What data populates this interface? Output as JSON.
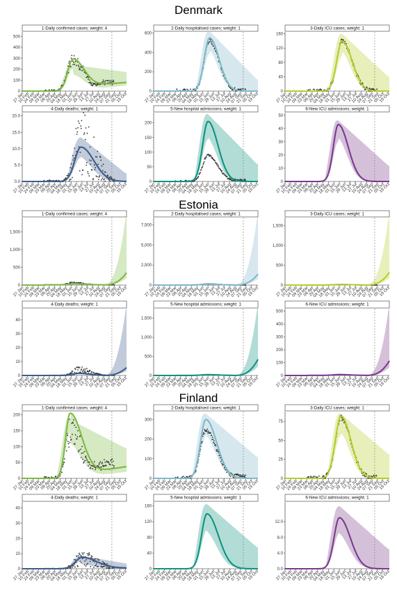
{
  "figure": {
    "countries": [
      "Denmark",
      "Estonia",
      "Finland"
    ],
    "x_ticks": [
      "27 Jan",
      "10 Feb",
      "24 Feb",
      "09 Mar",
      "23 Mar",
      "06 Apr",
      "20 Apr",
      "04 May",
      "18 May",
      "01 Jun",
      "15 Jun",
      "29 Jun",
      "13 Jul",
      "27 Jul",
      "10 Aug",
      "24 Aug",
      "07 Sep",
      "21 Sep",
      "05 Oct",
      "19 Oct"
    ],
    "cutoff_date": "14 Sep",
    "colors": {
      "confirmed": "#7cba41",
      "hospitalised": "#7fb9c9",
      "icu": "#b7cd2b",
      "deaths": "#3f5c8c",
      "new_hosp": "#0f9380",
      "new_icu": "#7b3a8d",
      "points": "#333333",
      "cutoff_line": "#888888"
    }
  },
  "chart_data": [
    {
      "country": "Denmark",
      "panel": "1-Daily confirmed cases; weight: 4",
      "type": "line",
      "color_key": "confirmed",
      "ylim": [
        0,
        540
      ],
      "yticks": [
        "0",
        "100",
        "200",
        "300",
        "400",
        "500"
      ],
      "peak_x": 9.3,
      "peak_y": 255,
      "rise": 1.4,
      "decay": 2.2,
      "floor": 40,
      "late_slope": 4,
      "ci_upper_peak": 240,
      "ci_upper_late": 175,
      "ci_lower_peak": 150,
      "ci_lower_late": 50,
      "obs_scale": 1.2,
      "obs_peak_y": 300,
      "obs_late": 80
    },
    {
      "country": "Denmark",
      "panel": "2-Daily hospitalised cases; weight: 1",
      "type": "line",
      "color_key": "hospitalised",
      "ylim": [
        0,
        610
      ],
      "yticks": [
        "0",
        "200",
        "400",
        "600"
      ],
      "peak_x": 10.3,
      "peak_y": 550,
      "rise": 1.4,
      "decay": 1.9,
      "floor": 0,
      "late_slope": 0,
      "ci_upper_peak": 620,
      "ci_upper_late": 120,
      "ci_lower_peak": 420,
      "ci_lower_late": 0,
      "obs_scale": 1.0,
      "obs_peak_y": 520,
      "obs_late": 5
    },
    {
      "country": "Denmark",
      "panel": "3-Daily ICU cases; weight: 1",
      "type": "line",
      "color_key": "icu",
      "ylim": [
        0,
        165
      ],
      "yticks": [
        "0",
        "40",
        "80",
        "120",
        "160"
      ],
      "peak_x": 10.5,
      "peak_y": 140,
      "rise": 1.4,
      "decay": 2.0,
      "floor": 0,
      "late_slope": 0,
      "ci_upper_peak": 160,
      "ci_upper_late": 40,
      "ci_lower_peak": 110,
      "ci_lower_late": 0,
      "obs_scale": 1.0,
      "obs_peak_y": 140,
      "obs_late": 2
    },
    {
      "country": "Denmark",
      "panel": "4-Daily deaths; weight: 1",
      "type": "line",
      "color_key": "deaths",
      "ylim": [
        0,
        21
      ],
      "yticks": [
        "0.0",
        "5.0",
        "10.0",
        "15.0",
        "20.0"
      ],
      "peak_x": 10.8,
      "peak_y": 10.5,
      "rise": 1.6,
      "decay": 2.6,
      "floor": 0,
      "late_slope": 0,
      "ci_upper_peak": 13.5,
      "ci_upper_late": 2.5,
      "ci_lower_peak": 7.5,
      "ci_lower_late": 0,
      "obs_scale": 1.9,
      "obs_peak_y": 12,
      "obs_late": 0.2
    },
    {
      "country": "Denmark",
      "panel": "5-New hospital admissions; weight: 1",
      "type": "line",
      "color_key": "new_hosp",
      "ylim": [
        0,
        235
      ],
      "yticks": [
        "0",
        "50",
        "100",
        "150",
        "200"
      ],
      "peak_x": 10.0,
      "peak_y": 205,
      "rise": 1.4,
      "decay": 2.0,
      "floor": 0,
      "late_slope": 0,
      "ci_upper_peak": 230,
      "ci_upper_late": 60,
      "ci_lower_peak": 150,
      "ci_lower_late": 0,
      "obs_scale": 1.0,
      "obs_peak_y": 90,
      "obs_late": 5
    },
    {
      "country": "Denmark",
      "panel": "6-New ICU admissions; weight: 1",
      "type": "line",
      "color_key": "new_icu",
      "ylim": [
        0,
        52
      ],
      "yticks": [
        "0",
        "10",
        "20",
        "30",
        "40",
        "50"
      ],
      "peak_x": 9.8,
      "peak_y": 43,
      "rise": 1.3,
      "decay": 2.0,
      "floor": 0,
      "late_slope": 0,
      "ci_upper_peak": 46,
      "ci_upper_late": 12,
      "ci_lower_peak": 33,
      "ci_lower_late": 0,
      "obs_scale": 0,
      "obs_peak_y": 0,
      "obs_late": 0
    },
    {
      "country": "Estonia",
      "panel": "1-Daily confirmed cases; weight: 4",
      "type": "line",
      "color_key": "confirmed",
      "ylim": [
        0,
        1900
      ],
      "yticks": [
        "0",
        "500",
        "1,000",
        "1,500"
      ],
      "peak_x": 9.5,
      "peak_y": 30,
      "rise": 1.5,
      "decay": 2.0,
      "floor": 8,
      "late_growth": [
        15,
        300
      ],
      "ci_late_upper": 1850,
      "obs_scale": 1.5,
      "obs_peak_y": 55,
      "obs_late": 20
    },
    {
      "country": "Estonia",
      "panel": "2-Daily hospitalised cases; weight: 1",
      "type": "line",
      "color_key": "hospitalised",
      "ylim": [
        0,
        8400
      ],
      "yticks": [
        "0",
        "2,500",
        "5,000",
        "7,500"
      ],
      "peak_x": 10.0,
      "peak_y": 120,
      "rise": 1.5,
      "decay": 2.0,
      "floor": 10,
      "late_growth": [
        15,
        1200
      ],
      "ci_late_upper": 8200,
      "obs_scale": 1.0,
      "obs_peak_y": 150,
      "obs_late": 20
    },
    {
      "country": "Estonia",
      "panel": "3-Daily ICU cases; weight: 1",
      "type": "line",
      "color_key": "icu",
      "ylim": [
        0,
        1700
      ],
      "yticks": [
        "0",
        "500",
        "1,000",
        "1,500"
      ],
      "peak_x": 10.2,
      "peak_y": 15,
      "rise": 1.5,
      "decay": 2.0,
      "floor": 2,
      "late_growth": [
        15,
        280
      ],
      "ci_late_upper": 1650,
      "obs_scale": 1.0,
      "obs_peak_y": 15,
      "obs_late": 2
    },
    {
      "country": "Estonia",
      "panel": "4-Daily deaths; weight: 1",
      "type": "line",
      "color_key": "deaths",
      "ylim": [
        0,
        48
      ],
      "yticks": [
        "0",
        "10",
        "20",
        "30",
        "40"
      ],
      "peak_x": 10.5,
      "peak_y": 1.5,
      "rise": 1.5,
      "decay": 2.0,
      "floor": 0,
      "late_growth": [
        15,
        5
      ],
      "ci_late_upper": 46,
      "obs_scale": 1.8,
      "obs_peak_y": 4,
      "obs_late": 0.2
    },
    {
      "country": "Estonia",
      "panel": "5-New hospital admissions; weight: 1",
      "type": "line",
      "color_key": "new_hosp",
      "ylim": [
        0,
        1750
      ],
      "yticks": [
        "0",
        "500",
        "1,000",
        "1,500"
      ],
      "peak_x": 10.0,
      "peak_y": 20,
      "rise": 1.5,
      "decay": 2.0,
      "floor": 2,
      "late_growth": [
        15,
        370
      ],
      "ci_late_upper": 1700,
      "obs_scale": 0,
      "obs_peak_y": 0,
      "obs_late": 0
    },
    {
      "country": "Estonia",
      "panel": "6-New ICU admissions; weight: 1",
      "type": "line",
      "color_key": "new_icu",
      "ylim": [
        0,
        520
      ],
      "yticks": [
        "0",
        "100",
        "200",
        "300",
        "400",
        "500"
      ],
      "peak_x": 10.0,
      "peak_y": 6,
      "rise": 1.5,
      "decay": 2.0,
      "floor": 1,
      "late_growth": [
        15,
        100
      ],
      "ci_late_upper": 500,
      "obs_scale": 0,
      "obs_peak_y": 0,
      "obs_late": 0
    },
    {
      "country": "Finland",
      "panel": "1-Daily confirmed cases; weight: 4",
      "type": "line",
      "color_key": "confirmed",
      "ylim": [
        0,
        210
      ],
      "yticks": [
        "0",
        "50",
        "100",
        "150",
        "200"
      ],
      "peak_x": 8.8,
      "peak_y": 195,
      "rise": 1.2,
      "decay": 2.3,
      "floor": 10,
      "late_slope": 2.6,
      "ci_upper_peak": 185,
      "ci_upper_late": 95,
      "ci_lower_peak": 110,
      "ci_lower_late": 20,
      "obs_scale": 1.3,
      "obs_peak_y": 150,
      "obs_late": 45
    },
    {
      "country": "Finland",
      "panel": "2-Daily hospitalised cases; weight: 1",
      "type": "line",
      "color_key": "hospitalised",
      "ylim": [
        0,
        340
      ],
      "yticks": [
        "0",
        "100",
        "200",
        "300"
      ],
      "peak_x": 9.6,
      "peak_y": 300,
      "rise": 1.4,
      "decay": 2.2,
      "floor": 0,
      "late_slope": 0,
      "ci_upper_peak": 330,
      "ci_upper_late": 110,
      "ci_lower_peak": 220,
      "ci_lower_late": 0,
      "obs_scale": 1.0,
      "obs_peak_y": 245,
      "obs_late": 15
    },
    {
      "country": "Finland",
      "panel": "3-Daily ICU cases; weight: 1",
      "type": "line",
      "color_key": "icu",
      "ylim": [
        0,
        88
      ],
      "yticks": [
        "0",
        "25",
        "50",
        "75"
      ],
      "peak_x": 10.3,
      "peak_y": 82,
      "rise": 1.5,
      "decay": 2.0,
      "floor": 0,
      "late_slope": 0,
      "ci_upper_peak": 85,
      "ci_upper_late": 32,
      "ci_lower_peak": 60,
      "ci_lower_late": 0,
      "obs_scale": 1.0,
      "obs_peak_y": 80,
      "obs_late": 1
    },
    {
      "country": "Finland",
      "panel": "4-Daily deaths; weight: 1",
      "type": "line",
      "color_key": "deaths",
      "ylim": [
        0,
        44
      ],
      "yticks": [
        "0",
        "10",
        "20",
        "30",
        "40"
      ],
      "peak_x": 11.0,
      "peak_y": 7,
      "rise": 1.8,
      "decay": 3.0,
      "floor": 0.5,
      "late_slope": 0,
      "ci_upper_peak": 8.5,
      "ci_upper_late": 3.5,
      "ci_lower_peak": 3.0,
      "ci_lower_late": 0,
      "obs_scale": 1.8,
      "obs_peak_y": 7,
      "obs_late": 0.5
    },
    {
      "country": "Finland",
      "panel": "5-New hospital admissions; weight: 1",
      "type": "line",
      "color_key": "new_hosp",
      "ylim": [
        0,
        170
      ],
      "yticks": [
        "0",
        "40",
        "80",
        "120",
        "160"
      ],
      "peak_x": 9.8,
      "peak_y": 140,
      "rise": 1.4,
      "decay": 2.3,
      "floor": 0,
      "late_slope": 0,
      "ci_upper_peak": 165,
      "ci_upper_late": 55,
      "ci_lower_peak": 95,
      "ci_lower_late": 0,
      "obs_scale": 0,
      "obs_peak_y": 0,
      "obs_late": 0
    },
    {
      "country": "Finland",
      "panel": "6-New ICU admissions; weight: 1",
      "type": "line",
      "color_key": "new_icu",
      "ylim": [
        0,
        17
      ],
      "yticks": [
        "0.0",
        "4.0",
        "8.0",
        "12.0"
      ],
      "peak_x": 10.0,
      "peak_y": 13,
      "rise": 1.4,
      "decay": 2.2,
      "floor": 0,
      "late_slope": 0,
      "ci_upper_peak": 16,
      "ci_upper_late": 5,
      "ci_lower_peak": 9,
      "ci_lower_late": 0,
      "obs_scale": 0,
      "obs_peak_y": 0,
      "obs_late": 0
    }
  ]
}
